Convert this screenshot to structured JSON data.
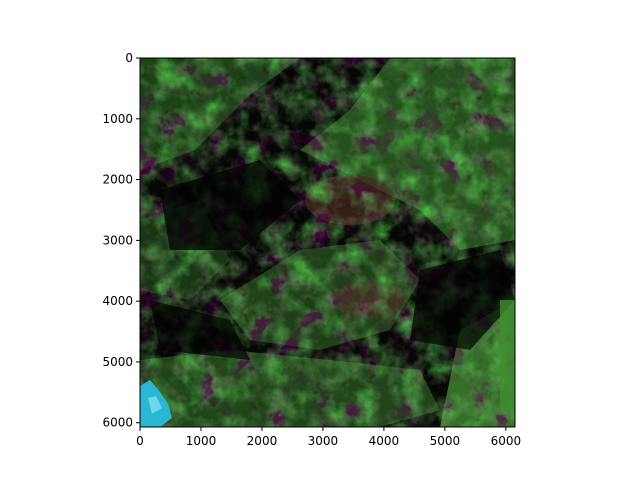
{
  "figure": {
    "kind": "imshow",
    "description_hidden": false
  },
  "chart_data": {
    "type": "image",
    "x_ticks": [
      "0",
      "1000",
      "2000",
      "3000",
      "4000",
      "5000",
      "6000"
    ],
    "x_tick_values": [
      0,
      1000,
      2000,
      3000,
      4000,
      5000,
      6000
    ],
    "y_ticks": [
      "0",
      "1000",
      "2000",
      "3000",
      "4000",
      "5000",
      "6000"
    ],
    "y_tick_values": [
      0,
      1000,
      2000,
      3000,
      4000,
      5000,
      6000
    ],
    "xlim": [
      0,
      6150
    ],
    "ylim": [
      6070,
      0
    ],
    "colors": {
      "dark": "#050705",
      "vegetation": "#2f6a26",
      "vegetation_bright": "#4c9a3a",
      "grey": "#5a5c55",
      "brown": "#5a3428",
      "water": "#29b7d3"
    }
  }
}
